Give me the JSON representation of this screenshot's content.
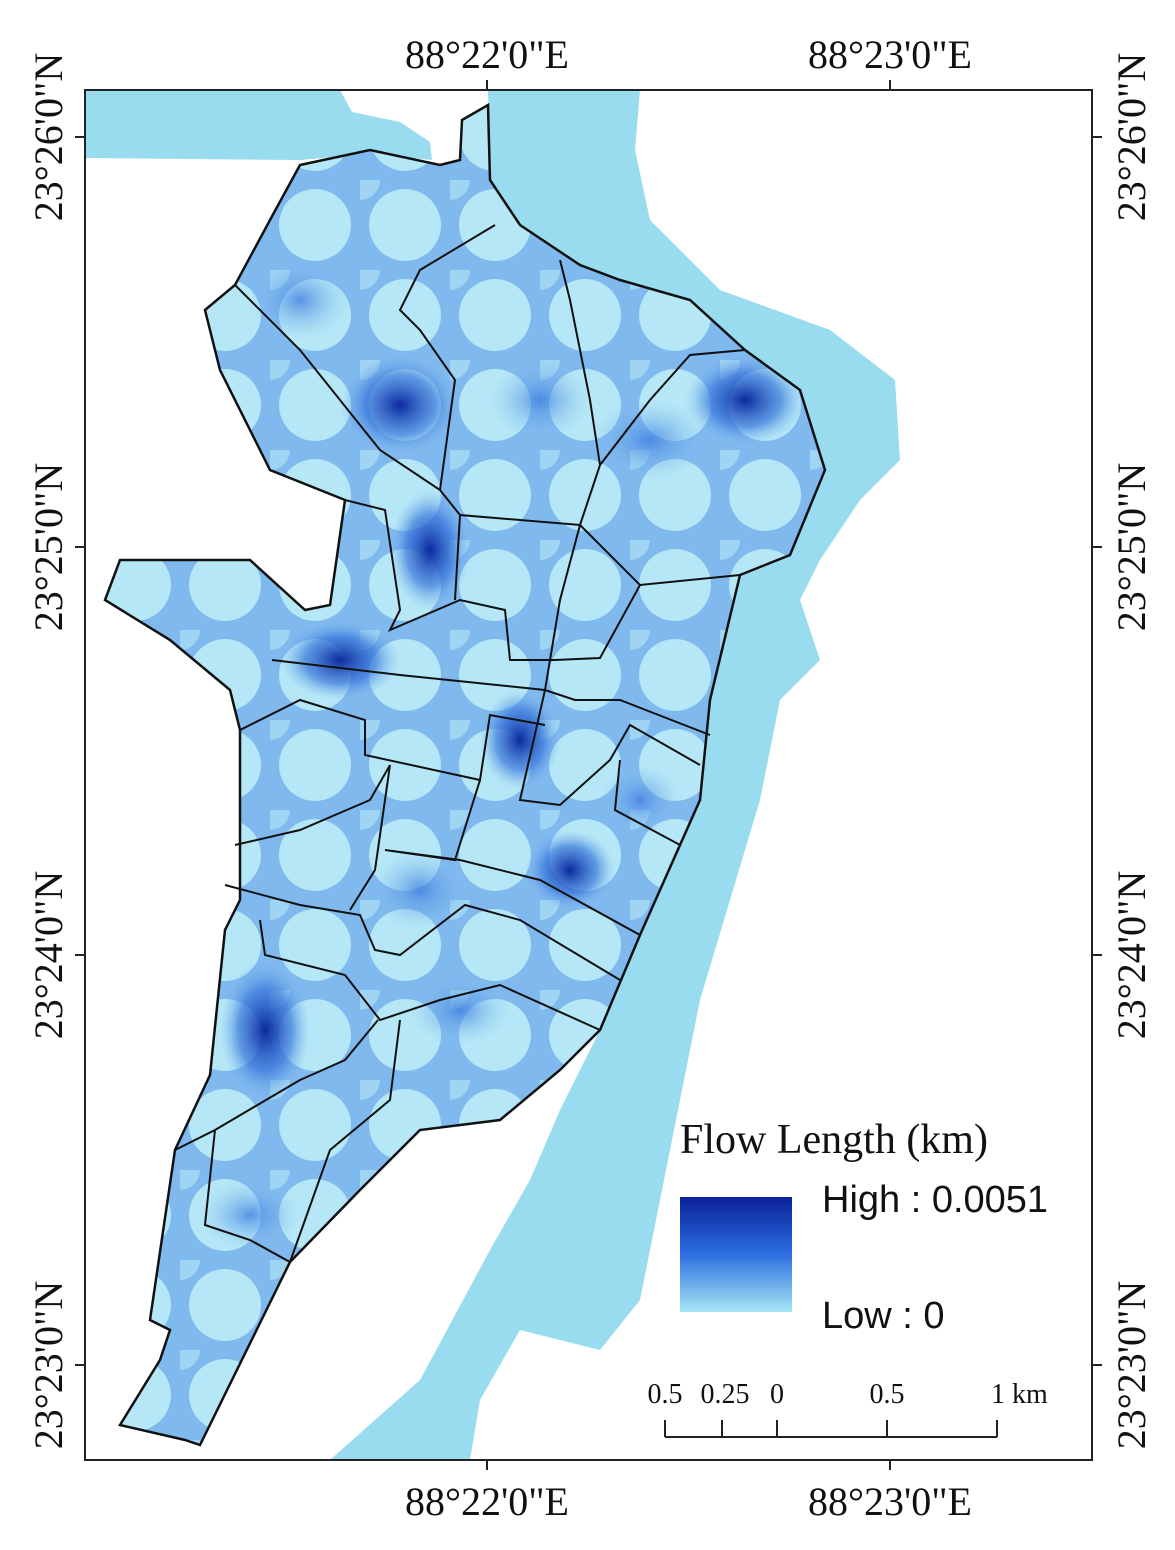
{
  "map": {
    "x_ticks": [
      "88°22'0\"E",
      "88°23'0\"E"
    ],
    "y_ticks": [
      "23°26'0\"N",
      "23°25'0\"N",
      "23°24'0\"N",
      "23°23'0\"N"
    ],
    "legend": {
      "title": "Flow Length (km)",
      "high": "High : 0.0051",
      "low": "Low : 0"
    },
    "scale_bar": {
      "labels": [
        "0.5",
        "0.25",
        "0",
        "0.5",
        "1 km"
      ]
    }
  }
}
